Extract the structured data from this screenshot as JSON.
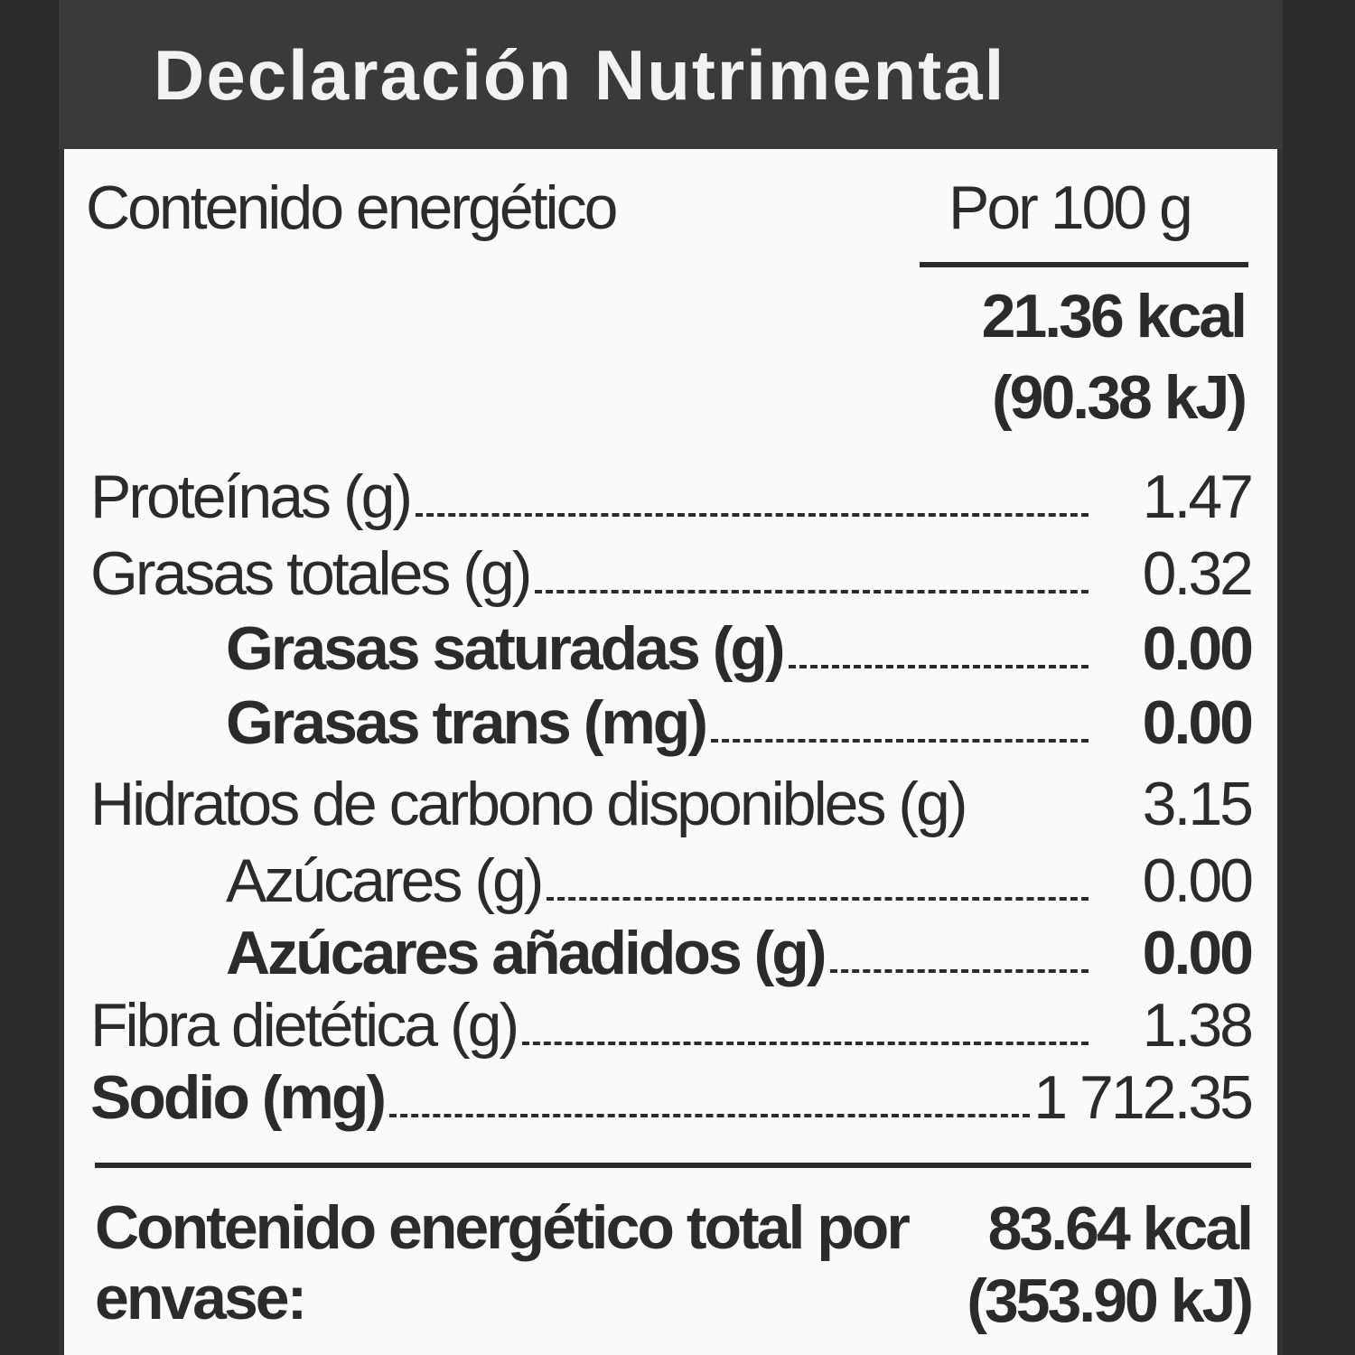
{
  "header": {
    "title": "Declaración Nutrimental"
  },
  "energy": {
    "label": "Contenido energético",
    "column": "Por 100 g",
    "kcal": "21.36 kcal",
    "kj": "(90.38 kJ)"
  },
  "rows": [
    {
      "label": "Proteínas (g)",
      "value": "1.47"
    },
    {
      "label": "Grasas totales (g)",
      "value": "0.32"
    },
    {
      "label": "Grasas saturadas (g)",
      "value": "0.00"
    },
    {
      "label": "Grasas trans (mg)",
      "value": "0.00"
    },
    {
      "label": "Hidratos de carbono disponibles (g)",
      "value": "3.15"
    },
    {
      "label": "Azúcares (g)",
      "value": "0.00"
    },
    {
      "label": "Azúcares añadidos (g)",
      "value": "0.00"
    },
    {
      "label": "Fibra dietética (g)",
      "value": "1.38"
    },
    {
      "label": "Sodio (mg)",
      "value": "1 712.35"
    }
  ],
  "footer": {
    "label": "Contenido energético total por envase:",
    "kcal": "83.64 kcal",
    "kj": "(353.90 kJ)"
  }
}
